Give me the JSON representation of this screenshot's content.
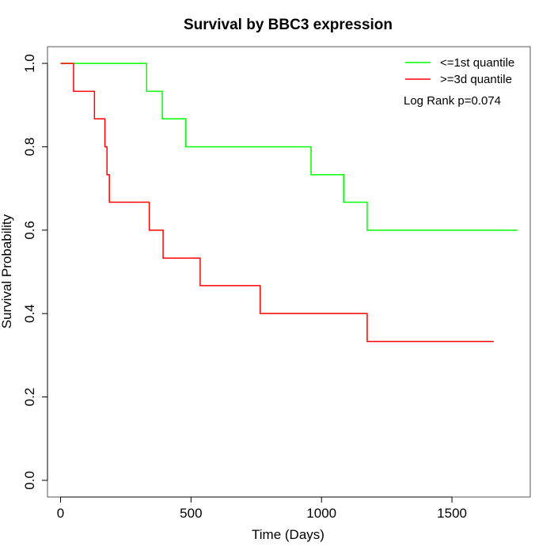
{
  "chart_data": {
    "type": "line",
    "subtype": "kaplan-meier-step",
    "title": "Survival by BBC3 expression",
    "xlabel": "Time (Days)",
    "ylabel": "Survival Probability",
    "xlim": [
      -50,
      1800
    ],
    "ylim": [
      -0.04,
      1.04
    ],
    "xticks": [
      0,
      500,
      1000,
      1500
    ],
    "yticks": [
      0.0,
      0.2,
      0.4,
      0.6,
      0.8,
      1.0
    ],
    "ytick_labels": [
      "0.0",
      "0.2",
      "0.4",
      "0.6",
      "0.8",
      "1.0"
    ],
    "grid": false,
    "legend_position": "top-right",
    "annotation": "Log Rank p=0.074",
    "series": [
      {
        "name": "<=1st quantile",
        "color": "#00ff00",
        "x": [
          0,
          330,
          390,
          480,
          960,
          1085,
          1175,
          1750
        ],
        "y": [
          1.0,
          0.933,
          0.867,
          0.8,
          0.733,
          0.667,
          0.6,
          0.6
        ]
      },
      {
        "name": ">=3d quantile",
        "color": "#ff0000",
        "x": [
          0,
          50,
          130,
          170,
          178,
          187,
          340,
          393,
          535,
          765,
          1175,
          1660
        ],
        "y": [
          1.0,
          0.933,
          0.867,
          0.8,
          0.733,
          0.667,
          0.6,
          0.533,
          0.467,
          0.4,
          0.333,
          0.333
        ]
      }
    ]
  }
}
